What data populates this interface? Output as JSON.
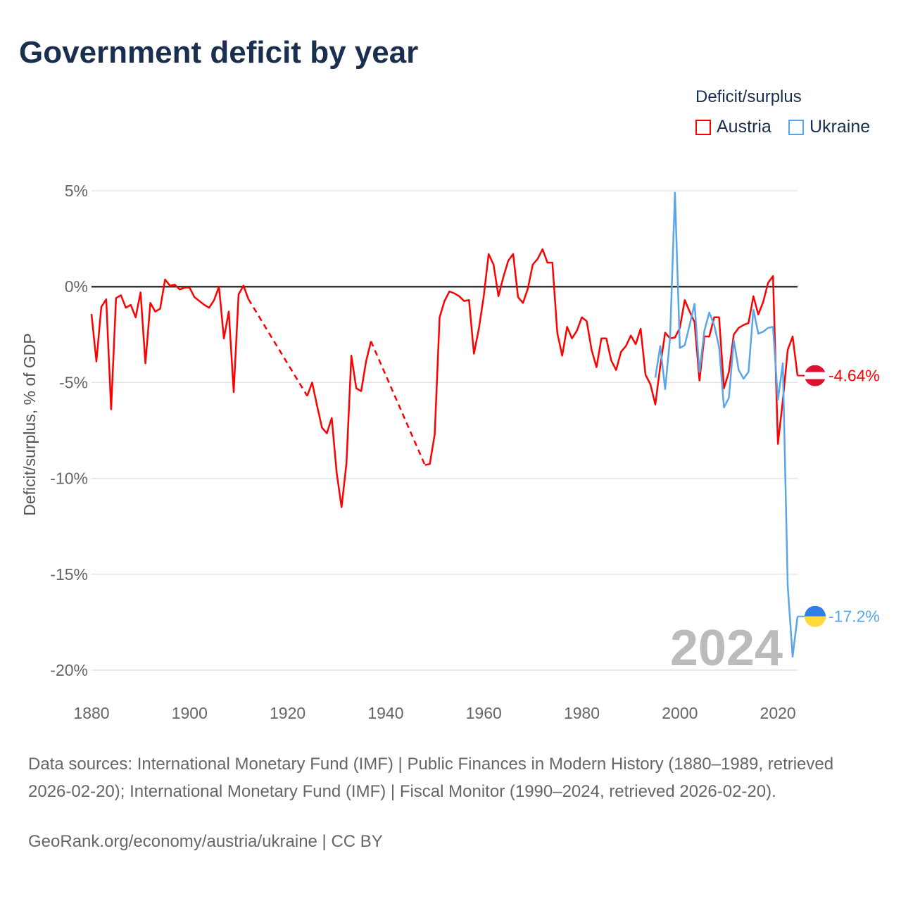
{
  "title": "Government deficit by year",
  "legend": {
    "title": "Deficit/surplus",
    "items": [
      {
        "label": "Austria",
        "color": "#ff0000"
      },
      {
        "label": "Ukraine",
        "color": "#5aa5ea"
      }
    ]
  },
  "footer": {
    "sources": "Data sources: International Monetary Fund (IMF) | Public Finances in Modern History (1880–1989, retrieved 2026-02-20); International Monetary Fund (IMF) | Fiscal Monitor (1990–2024, retrieved 2026-02-20).",
    "credit": "GeoRank.org/economy/austria/ukraine | CC BY"
  },
  "chart_data": {
    "type": "line",
    "title": "Government deficit by year",
    "xlabel": "",
    "ylabel": "Deficit/surplus, % of GDP",
    "xlim": [
      1880,
      2024
    ],
    "ylim": [
      -20,
      5
    ],
    "xticks": [
      "1880",
      "1900",
      "1920",
      "1940",
      "1960",
      "1980",
      "2000",
      "2020"
    ],
    "yticks": [
      {
        "v": 5,
        "label": "5%"
      },
      {
        "v": 0,
        "label": "0%"
      },
      {
        "v": -5,
        "label": "-5%"
      },
      {
        "v": -10,
        "label": "-10%"
      },
      {
        "v": -15,
        "label": "-15%"
      },
      {
        "v": -20,
        "label": "-20%"
      }
    ],
    "grid": true,
    "year_label": "2024",
    "series": [
      {
        "name": "Austria",
        "color": "#ff0000",
        "end_label": "-4.64%",
        "x": [
          1880,
          1881,
          1882,
          1883,
          1884,
          1885,
          1886,
          1887,
          1888,
          1889,
          1890,
          1891,
          1892,
          1893,
          1894,
          1895,
          1896,
          1897,
          1898,
          1899,
          1900,
          1901,
          1902,
          1903,
          1904,
          1905,
          1906,
          1907,
          1908,
          1909,
          1910,
          1911,
          1912,
          1924,
          1925,
          1926,
          1927,
          1928,
          1929,
          1930,
          1931,
          1932,
          1933,
          1934,
          1935,
          1936,
          1937,
          1948,
          1949,
          1950,
          1951,
          1952,
          1953,
          1954,
          1955,
          1956,
          1957,
          1958,
          1959,
          1960,
          1961,
          1962,
          1963,
          1964,
          1965,
          1966,
          1967,
          1968,
          1969,
          1970,
          1971,
          1972,
          1973,
          1974,
          1975,
          1976,
          1977,
          1978,
          1979,
          1980,
          1981,
          1982,
          1983,
          1984,
          1985,
          1986,
          1987,
          1988,
          1989,
          1990,
          1991,
          1992,
          1993,
          1994,
          1995,
          1996,
          1997,
          1998,
          1999,
          2000,
          2001,
          2002,
          2003,
          2004,
          2005,
          2006,
          2007,
          2008,
          2009,
          2010,
          2011,
          2012,
          2013,
          2014,
          2015,
          2016,
          2017,
          2018,
          2019,
          2020,
          2021,
          2022,
          2023,
          2024
        ],
        "y": [
          -1.43,
          -3.9,
          -1.06,
          -0.66,
          -6.4,
          -0.6,
          -0.45,
          -1.1,
          -0.95,
          -1.6,
          -0.3,
          -4.0,
          -0.85,
          -1.3,
          -1.15,
          0.37,
          0.05,
          0.1,
          -0.15,
          -0.05,
          -0.05,
          -0.55,
          -0.75,
          -0.95,
          -1.1,
          -0.7,
          0,
          -2.7,
          -1.3,
          -5.5,
          -0.4,
          0.05,
          -0.65,
          -5.7,
          -5.0,
          -6.2,
          -7.35,
          -7.65,
          -6.85,
          -9.7,
          -11.5,
          -9.2,
          -3.6,
          -5.3,
          -5.45,
          -3.9,
          -2.85,
          -9.3,
          -9.25,
          -7.7,
          -1.6,
          -0.75,
          -0.25,
          -0.35,
          -0.5,
          -0.75,
          -0.7,
          -3.5,
          -2.2,
          -0.5,
          1.7,
          1.15,
          -0.5,
          0.5,
          1.35,
          1.7,
          -0.55,
          -0.85,
          -0.1,
          1.15,
          1.45,
          1.95,
          1.25,
          1.25,
          -2.4,
          -3.6,
          -2.1,
          -2.7,
          -2.3,
          -1.6,
          -1.8,
          -3.3,
          -4.2,
          -2.7,
          -2.7,
          -3.85,
          -4.35,
          -3.4,
          -3.1,
          -2.55,
          -3.0,
          -2.2,
          -4.6,
          -5.1,
          -6.15,
          -4.15,
          -2.4,
          -2.7,
          -2.65,
          -2.15,
          -0.7,
          -1.3,
          -1.85,
          -4.9,
          -2.6,
          -2.6,
          -1.6,
          -1.6,
          -5.3,
          -4.45,
          -2.5,
          -2.15,
          -2.0,
          -1.9,
          -0.5,
          -1.45,
          -0.8,
          0.2,
          0.55,
          -8.2,
          -5.95,
          -3.3,
          -2.6,
          -4.64
        ]
      },
      {
        "name": "Ukraine",
        "color": "#5aa5ea",
        "end_label": "-17.2%",
        "x": [
          1995,
          1996,
          1997,
          1998,
          1999,
          2000,
          2001,
          2002,
          2003,
          2004,
          2005,
          2006,
          2007,
          2008,
          2009,
          2010,
          2011,
          2012,
          2013,
          2014,
          2015,
          2016,
          2017,
          2018,
          2019,
          2020,
          2021,
          2022,
          2023,
          2024
        ],
        "y": [
          -4.75,
          -3.1,
          -5.35,
          -2.7,
          4.9,
          -3.2,
          -3.05,
          -2.0,
          -0.9,
          -4.45,
          -2.3,
          -1.35,
          -2.0,
          -3.15,
          -6.3,
          -5.8,
          -2.8,
          -4.35,
          -4.8,
          -4.45,
          -1.2,
          -2.45,
          -2.35,
          -2.15,
          -2.1,
          -5.9,
          -4.0,
          -15.6,
          -19.3,
          -17.2
        ]
      }
    ]
  }
}
